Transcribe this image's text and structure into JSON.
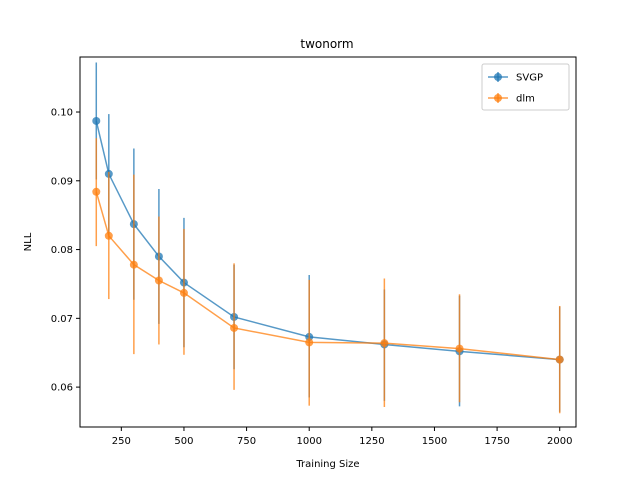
{
  "chart_data": {
    "type": "line",
    "title": "twonorm",
    "xlabel": "Training Size",
    "ylabel": "NLL",
    "xlim": [
      85,
      2065
    ],
    "ylim": [
      0.0542,
      0.108
    ],
    "xticks": [
      250,
      500,
      750,
      1000,
      1250,
      1500,
      1750,
      2000
    ],
    "xtick_labels": [
      "250",
      "500",
      "750",
      "1000",
      "1250",
      "1500",
      "1750",
      "2000"
    ],
    "yticks": [
      0.06,
      0.07,
      0.08,
      0.09,
      0.1
    ],
    "ytick_labels": [
      "0.06",
      "0.07",
      "0.08",
      "0.09",
      "0.10"
    ],
    "grid": false,
    "legend_position": "top-right",
    "x": [
      150,
      200,
      300,
      400,
      500,
      700,
      1000,
      1300,
      1600,
      2000
    ],
    "series": [
      {
        "name": "SVGP",
        "color": "#1f77b4",
        "values": [
          0.0987,
          0.091,
          0.0837,
          0.079,
          0.0752,
          0.0702,
          0.0673,
          0.0662,
          0.0652,
          0.064
        ],
        "err_low": [
          0.0902,
          0.0822,
          0.0727,
          0.0692,
          0.0658,
          0.0626,
          0.0585,
          0.058,
          0.0572,
          0.0564
        ],
        "err_high": [
          0.1072,
          0.0997,
          0.0947,
          0.0888,
          0.0846,
          0.0778,
          0.0763,
          0.0742,
          0.0733,
          0.0717
        ]
      },
      {
        "name": "dlm",
        "color": "#ff7f0e",
        "values": [
          0.0884,
          0.082,
          0.0778,
          0.0755,
          0.0737,
          0.0686,
          0.0665,
          0.0664,
          0.0656,
          0.064
        ],
        "err_low": [
          0.0805,
          0.0728,
          0.0648,
          0.0662,
          0.0647,
          0.0596,
          0.0573,
          0.0571,
          0.0578,
          0.0562
        ],
        "err_high": [
          0.0962,
          0.0913,
          0.0909,
          0.0848,
          0.083,
          0.078,
          0.0756,
          0.0758,
          0.0735,
          0.0718
        ]
      }
    ]
  }
}
